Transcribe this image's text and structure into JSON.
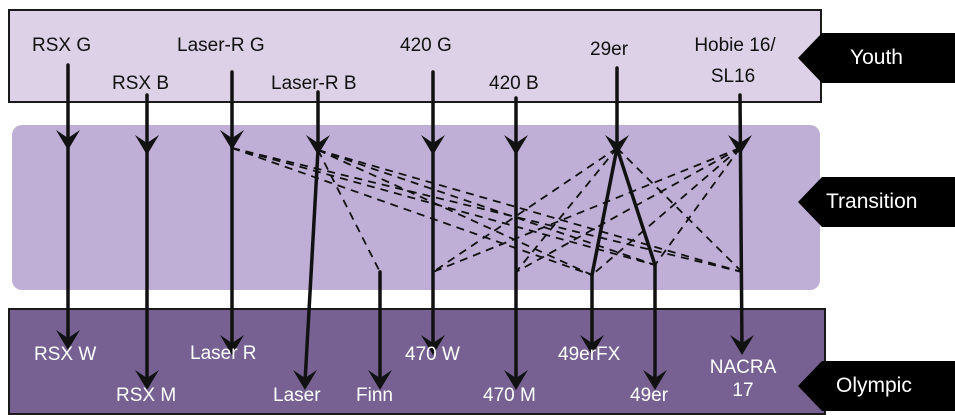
{
  "levels": {
    "youth": "Youth",
    "transition": "Transition",
    "olympic": "Olympic"
  },
  "youth_classes": [
    "RSX G",
    "RSX B",
    "Laser-R G",
    "Laser-R B",
    "420 G",
    "420 B",
    "29er",
    "Hobie 16/",
    "SL16"
  ],
  "olympic_classes": [
    "RSX W",
    "RSX M",
    "Laser R",
    "Laser",
    "Finn",
    "470 W",
    "470 M",
    "49erFX",
    "49er",
    "NACRA",
    "17"
  ],
  "colors": {
    "youth_band": "#dcd1e6",
    "transition_band": "#bfaed6",
    "olympic_band": "#776193",
    "arrow": "#111111",
    "tag": "#000000"
  }
}
